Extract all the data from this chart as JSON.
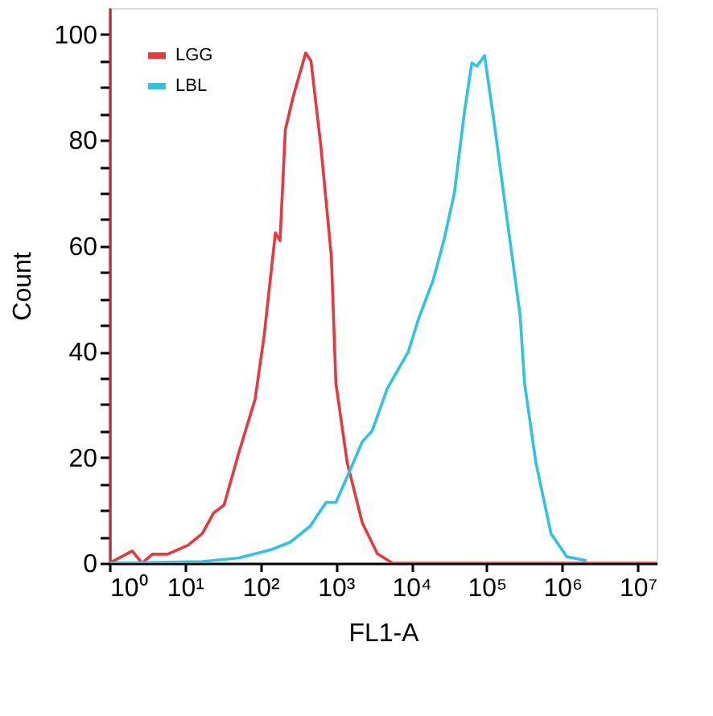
{
  "chart_data": {
    "type": "line",
    "xlabel": "FL1-A",
    "ylabel": "Count",
    "log": "x",
    "xlim": [
      1,
      17782794
    ],
    "ylim": [
      0,
      105
    ],
    "xticks": [
      {
        "value": 1,
        "label": "10⁰"
      },
      {
        "value": 10,
        "label": "10¹"
      },
      {
        "value": 100,
        "label": "10²"
      },
      {
        "value": 1000,
        "label": "10³"
      },
      {
        "value": 10000,
        "label": "10⁴"
      },
      {
        "value": 100000,
        "label": "10⁵"
      },
      {
        "value": 1000000,
        "label": "10⁶"
      },
      {
        "value": 10000000,
        "label": "10⁷"
      }
    ],
    "yticks": [
      0,
      {
        "value": 5,
        "label": null
      },
      {
        "value": 10,
        "label": null
      },
      {
        "value": 15,
        "label": null
      },
      20,
      {
        "value": 25,
        "label": null
      },
      {
        "value": 30,
        "label": null
      },
      {
        "value": 35,
        "label": null
      },
      40,
      {
        "value": 45,
        "label": null
      },
      {
        "value": 50,
        "label": null
      },
      {
        "value": 55,
        "label": null
      },
      60,
      {
        "value": 65,
        "label": null
      },
      {
        "value": 70,
        "label": null
      },
      {
        "value": 75,
        "label": null
      },
      80,
      {
        "value": 85,
        "label": null
      },
      {
        "value": 90,
        "label": null
      },
      {
        "value": 95,
        "label": null
      },
      100
    ],
    "grid": false,
    "legend": "top left",
    "marker": "none",
    "line_style": "solid",
    "series": [
      {
        "name": "LGG",
        "color": "#e8383d",
        "x": [
          1,
          1,
          2,
          2.7,
          3.7,
          5.9,
          11,
          17,
          24,
          33,
          52,
          85,
          112,
          158,
          182,
          214,
          269,
          398,
          468,
          631,
          871,
          1000,
          1413,
          2239,
          3548,
          5623,
          17782794
        ],
        "values": [
          105,
          0,
          2.3,
          0,
          1.7,
          1.7,
          3.4,
          5.6,
          9.5,
          11,
          21,
          31,
          43,
          62.5,
          61,
          82,
          88,
          96.5,
          95,
          79,
          58,
          34,
          19,
          7.6,
          1.8,
          0,
          0
        ]
      },
      {
        "name": "LBL",
        "color": "#2ec4e0",
        "x": [
          1,
          17,
          52,
          135,
          251,
          457,
          741,
          1000,
          1585,
          2239,
          3020,
          4786,
          9120,
          12300,
          19500,
          26900,
          37150,
          50100,
          63100,
          74100,
          93300,
          125900,
          173800,
          275400,
          316200,
          446700,
          707900,
          1148000,
          2089000
        ],
        "values": [
          0,
          0.3,
          1,
          2.5,
          4,
          7,
          11.5,
          11.5,
          18,
          23,
          25,
          33,
          40,
          46,
          53.6,
          61,
          70,
          85,
          94.6,
          94,
          96,
          83,
          68,
          47,
          34,
          19,
          5.6,
          1.2,
          0.5
        ]
      }
    ]
  }
}
